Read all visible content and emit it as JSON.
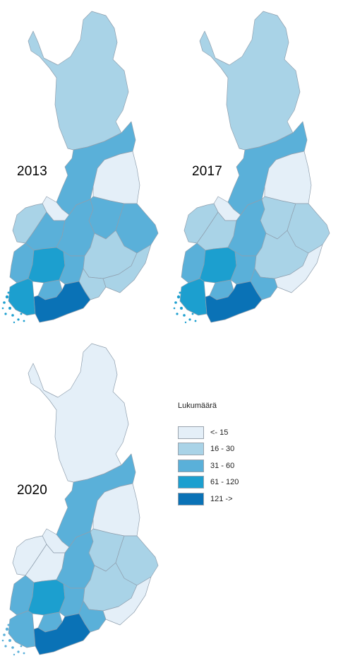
{
  "legend": {
    "title": "Lukumäärä",
    "classes": [
      {
        "label": "<- 15",
        "color": "#e4eff8"
      },
      {
        "label": "16 - 30",
        "color": "#a9d3e7"
      },
      {
        "label": "31 - 60",
        "color": "#5ab0d9"
      },
      {
        "label": "61 - 120",
        "color": "#1c9fcf"
      },
      {
        "label": "121 ->",
        "color": "#0a72b6"
      }
    ]
  },
  "maps": [
    {
      "year": "2013",
      "region_classes": {
        "lapland": 1,
        "north_ostrobothnia": 2,
        "kainuu": 0,
        "central_ostrobothnia": 0,
        "ostrobothnia": 1,
        "south_ostrobothnia": 2,
        "central_finland": 2,
        "north_savo": 2,
        "north_karelia": 2,
        "satakunta": 2,
        "pirkanmaa": 3,
        "southwest_finland": 3,
        "kanta_hame": 2,
        "paijat_hame": 2,
        "south_savo": 1,
        "kymenlaakso": 1,
        "south_karelia": 1,
        "uusimaa": 4
      }
    },
    {
      "year": "2017",
      "region_classes": {
        "lapland": 1,
        "north_ostrobothnia": 2,
        "kainuu": 0,
        "central_ostrobothnia": 0,
        "ostrobothnia": 1,
        "south_ostrobothnia": 1,
        "central_finland": 2,
        "north_savo": 1,
        "north_karelia": 1,
        "satakunta": 2,
        "pirkanmaa": 3,
        "southwest_finland": 3,
        "kanta_hame": 2,
        "paijat_hame": 2,
        "south_savo": 1,
        "kymenlaakso": 2,
        "south_karelia": 0,
        "uusimaa": 4
      }
    },
    {
      "year": "2020",
      "region_classes": {
        "lapland": 0,
        "north_ostrobothnia": 2,
        "kainuu": 0,
        "central_ostrobothnia": 0,
        "ostrobothnia": 0,
        "south_ostrobothnia": 0,
        "central_finland": 2,
        "north_savo": 1,
        "north_karelia": 1,
        "satakunta": 2,
        "pirkanmaa": 3,
        "southwest_finland": 2,
        "kanta_hame": 2,
        "paijat_hame": 2,
        "south_savo": 1,
        "kymenlaakso": 2,
        "south_karelia": 0,
        "uusimaa": 4
      }
    }
  ]
}
